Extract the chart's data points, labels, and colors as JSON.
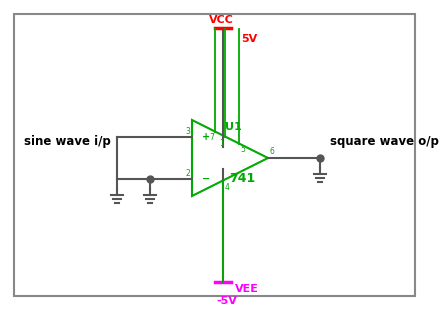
{
  "bg_color": "#ffffff",
  "border_color": "#888888",
  "opamp_color": "#00aa00",
  "wire_color": "#555555",
  "vcc_color": "#ff0000",
  "vee_color": "#ff00ff",
  "label_color": "#000000",
  "vcc_label": "VCC",
  "vcc_value": "5V",
  "vee_label": "VEE",
  "vee_value": "-5V",
  "u1_label": "U1",
  "ic_label": "741",
  "sine_label": "sine wave i/p",
  "square_label": "square wave o/p"
}
